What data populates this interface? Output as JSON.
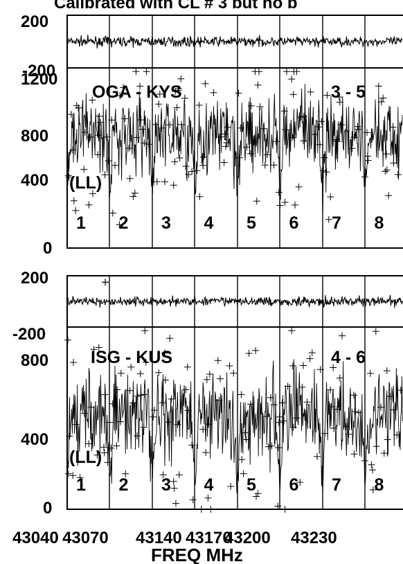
{
  "title": "Calibrated with CL # 3 but no b",
  "xlabel": "FREQ MHz",
  "x_tick_labels": [
    "43040",
    "43070",
    "43140",
    "43170",
    "43200",
    "43230"
  ],
  "colors": {
    "ink": "#000000",
    "background": "#ffffff"
  },
  "chart_data": [
    {
      "type": "scatter",
      "role": "phase",
      "baseline": "OGA - KYS",
      "ylim": [
        -200,
        200
      ],
      "y_tick_labels": [
        "200",
        "-200"
      ],
      "series": [
        {
          "mean": 0,
          "spread": 18
        }
      ]
    },
    {
      "type": "scatter",
      "role": "amplitude",
      "baseline": "OGA - KYS",
      "channel_range": "3 - 5",
      "polarization": "(LL)",
      "ylim": [
        0,
        1200
      ],
      "y_tick_labels": [
        "1200",
        "800",
        "400",
        "0"
      ],
      "if_labels": [
        "1",
        "2",
        "3",
        "4",
        "5",
        "6",
        "7",
        "8"
      ],
      "series": [
        {
          "mean": 760,
          "spread": 130,
          "dip_value": 380
        }
      ]
    },
    {
      "type": "scatter",
      "role": "phase",
      "baseline": "ISG - KUS",
      "ylim": [
        -200,
        200
      ],
      "y_tick_labels": [
        "200",
        "-200"
      ],
      "outliers": [
        150
      ],
      "series": [
        {
          "mean": 0,
          "spread": 18
        }
      ]
    },
    {
      "type": "scatter",
      "role": "amplitude",
      "baseline": "ISG - KUS",
      "channel_range": "4 - 6",
      "polarization": "(LL)",
      "ylim": [
        0,
        900
      ],
      "y_tick_labels": [
        "800",
        "400",
        "0"
      ],
      "if_labels": [
        "1",
        "2",
        "3",
        "4",
        "5",
        "6",
        "7",
        "8"
      ],
      "series": [
        {
          "mean": 470,
          "spread": 110,
          "dip_value": 150
        }
      ]
    }
  ]
}
